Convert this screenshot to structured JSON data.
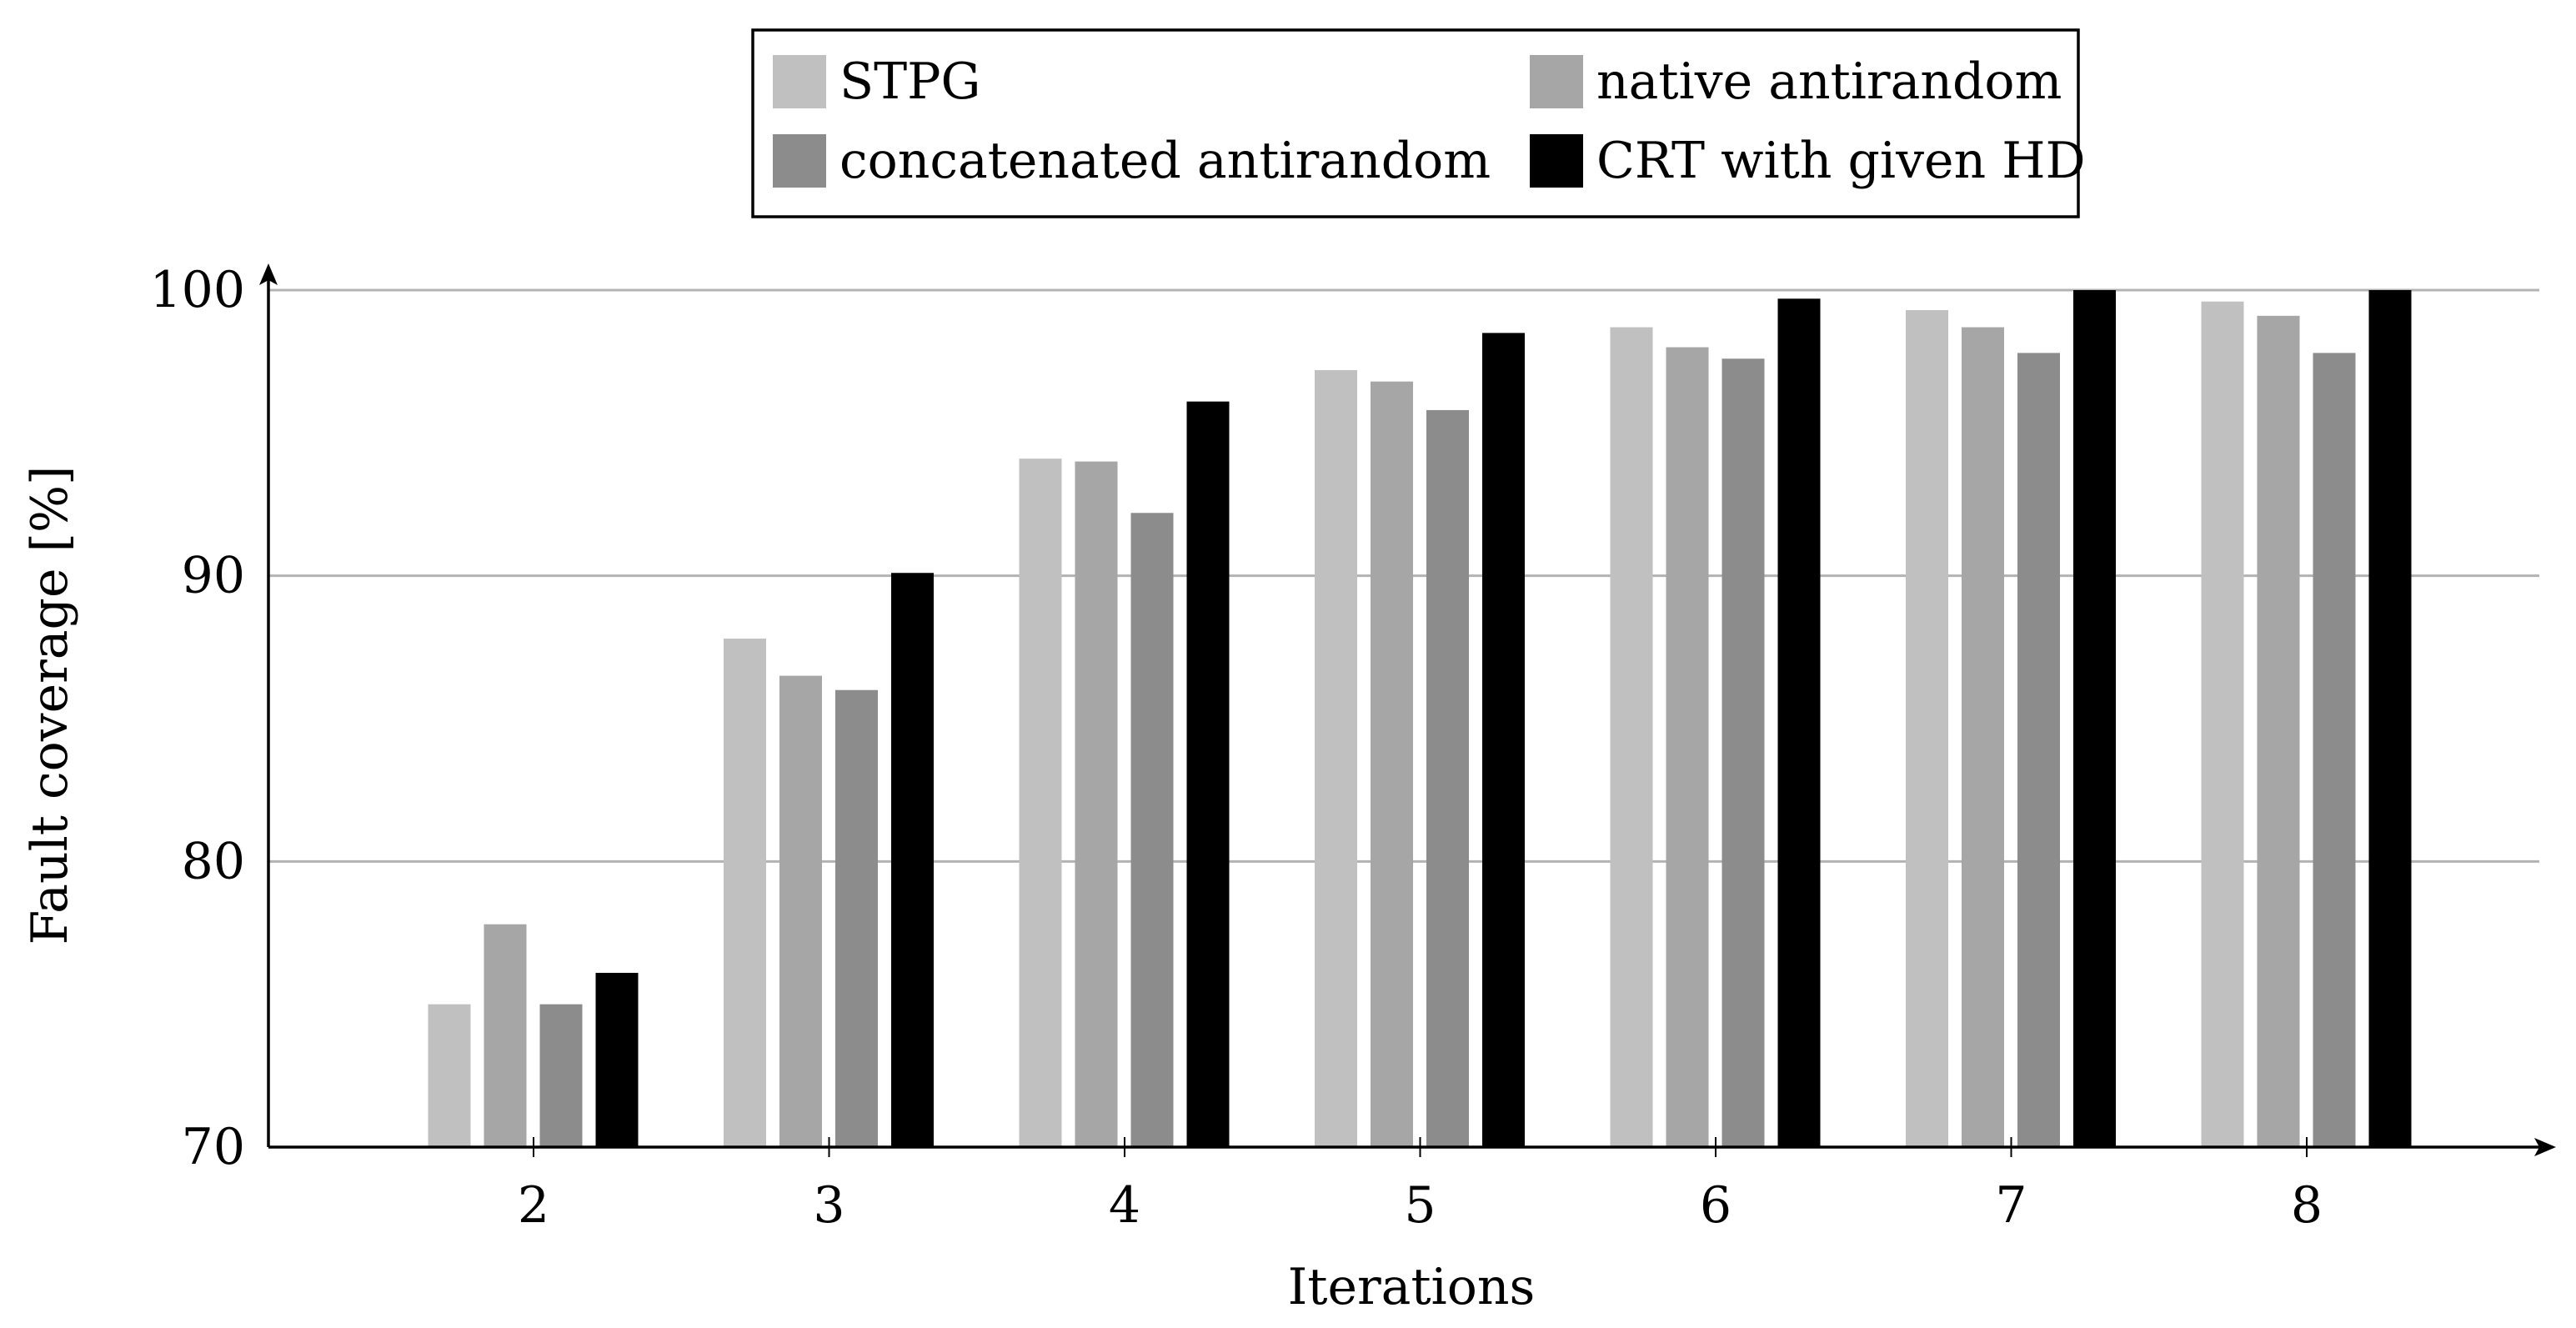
{
  "chart_data": {
    "type": "bar",
    "categories": [
      "2",
      "3",
      "4",
      "5",
      "6",
      "7",
      "8"
    ],
    "series": [
      {
        "name": "STPG",
        "color": "#c0c0c0",
        "values": [
          75.0,
          87.8,
          94.1,
          97.2,
          98.7,
          99.3,
          99.6
        ]
      },
      {
        "name": "native antirandom",
        "color": "#a6a6a6",
        "values": [
          77.8,
          86.5,
          94.0,
          96.8,
          98.0,
          98.7,
          99.1
        ]
      },
      {
        "name": "concatenated antirandom",
        "color": "#8c8c8c",
        "values": [
          75.0,
          86.0,
          92.2,
          95.8,
          97.6,
          97.8,
          97.8
        ]
      },
      {
        "name": "CRT with given HD",
        "color": "#000000",
        "values": [
          76.1,
          90.1,
          96.1,
          98.5,
          99.7,
          100.0,
          100.0
        ]
      }
    ],
    "xlabel": "Iterations",
    "ylabel": "Fault coverage [%]",
    "ylim": [
      70,
      100
    ],
    "yticks": [
      "70",
      "80",
      "90",
      "100"
    ],
    "grid": "horizontal",
    "legend_position": "top-center"
  }
}
